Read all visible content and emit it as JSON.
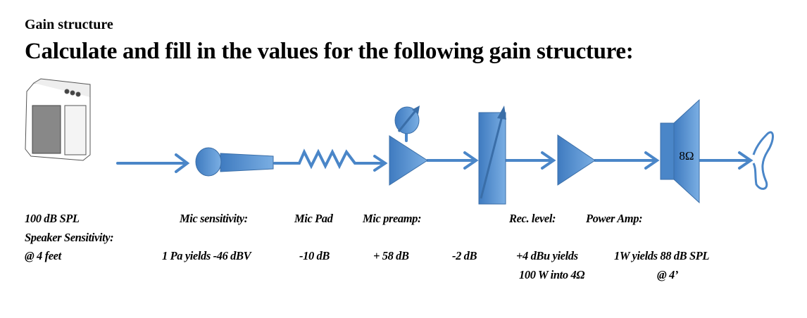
{
  "header": {
    "subtitle": "Gain structure",
    "title": "Calculate and fill in the values for the following gain structure:"
  },
  "diagram": {
    "accent_color": "#4a86c8",
    "speaker_impedance": "8Ω",
    "icons": [
      "guitar-amp-icon",
      "microphone-icon",
      "resistor-pad-icon",
      "preamp-triangle-icon",
      "gain-knob-icon",
      "fader-icon",
      "power-amp-triangle-icon",
      "loudspeaker-icon",
      "ear-icon"
    ]
  },
  "labels": {
    "source_spl": "100 dB SPL",
    "speaker_sensitivity_heading": "Speaker Sensitivity:",
    "source_distance": "@ 4 feet",
    "mic_sensitivity_heading": "Mic sensitivity:",
    "mic_sensitivity_value": "1 Pa yields -46 dBV",
    "mic_pad_heading": "Mic Pad",
    "mic_pad_value": "-10 dB",
    "mic_preamp_heading": "Mic preamp:",
    "mic_preamp_value": "+ 58 dB",
    "fader_value": "-2 dB",
    "rec_level_heading": "Rec. level:",
    "power_amp_heading": "Power Amp:",
    "power_amp_value_1": "+4 dBu yields",
    "power_amp_value_2": "100 W into 4Ω",
    "speaker_value_1": "1W yields 88 dB SPL",
    "speaker_value_2": "@ 4’"
  }
}
